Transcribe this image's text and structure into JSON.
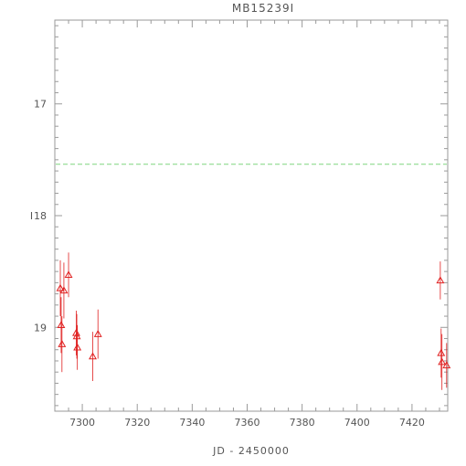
{
  "chart_data": {
    "type": "scatter",
    "title": "MB15239I",
    "xlabel": "JD - 2450000",
    "ylabel": "I",
    "xlim": [
      7290,
      7433
    ],
    "ylim": [
      19.75,
      16.25
    ],
    "y_inverted": true,
    "grid": false,
    "legend": "none",
    "x_ticks": [
      7300,
      7320,
      7340,
      7360,
      7380,
      7400,
      7420
    ],
    "y_ticks": [
      17,
      18,
      19
    ],
    "reference_line": {
      "y": 17.54,
      "style": "dashed",
      "color": "#7fd67f"
    },
    "series": [
      {
        "marker": "triangle-open",
        "color": "#e02020",
        "points": [
          {
            "x": 7292.0,
            "y": 18.65,
            "err": 0.25
          },
          {
            "x": 7292.3,
            "y": 18.98,
            "err": 0.25
          },
          {
            "x": 7292.6,
            "y": 19.15,
            "err": 0.25
          },
          {
            "x": 7293.3,
            "y": 18.67,
            "err": 0.25
          },
          {
            "x": 7295.0,
            "y": 18.53,
            "err": 0.2
          },
          {
            "x": 7297.8,
            "y": 19.05,
            "err": 0.2
          },
          {
            "x": 7298.0,
            "y": 19.08,
            "err": 0.2
          },
          {
            "x": 7298.2,
            "y": 19.18,
            "err": 0.2
          },
          {
            "x": 7303.8,
            "y": 19.26,
            "err": 0.22
          },
          {
            "x": 7305.7,
            "y": 19.06,
            "err": 0.22
          },
          {
            "x": 7430.3,
            "y": 18.58,
            "err": 0.17
          },
          {
            "x": 7430.6,
            "y": 19.23,
            "err": 0.22
          },
          {
            "x": 7430.9,
            "y": 19.31,
            "err": 0.25
          },
          {
            "x": 7432.6,
            "y": 19.34,
            "err": 0.2
          }
        ]
      }
    ]
  }
}
